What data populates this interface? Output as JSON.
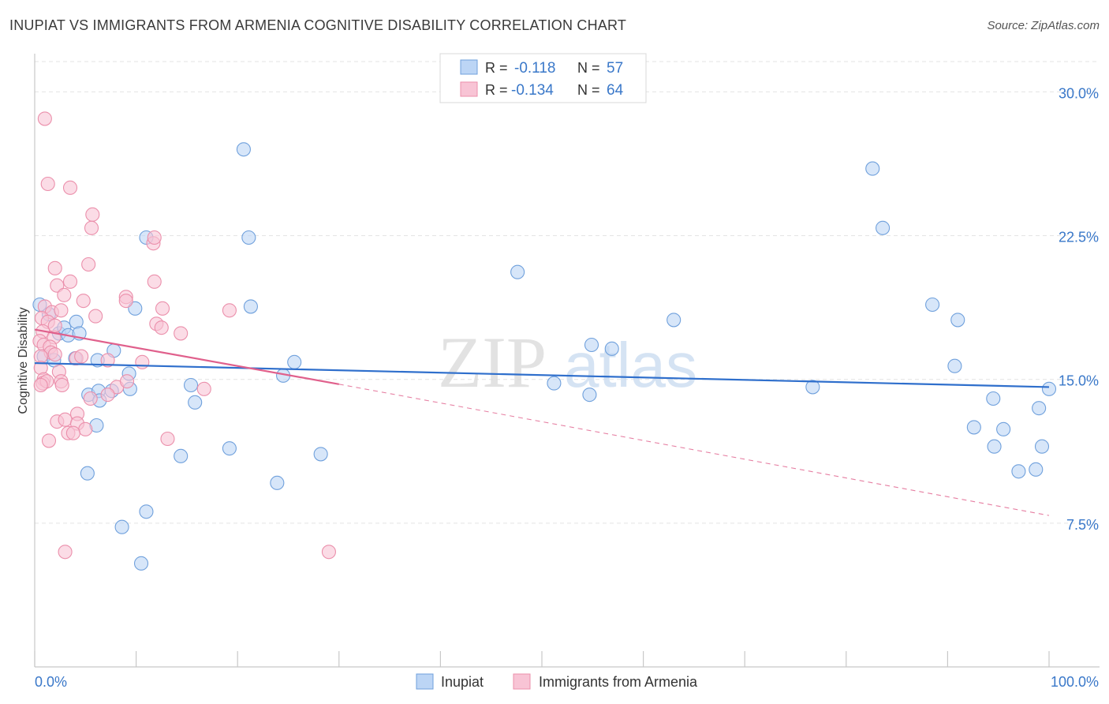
{
  "header": {
    "title": "INUPIAT VS IMMIGRANTS FROM ARMENIA COGNITIVE DISABILITY CORRELATION CHART",
    "source": "Source: ZipAtlas.com"
  },
  "watermark": {
    "part1": "ZIP",
    "part2": "atlas"
  },
  "colors": {
    "blue_fill": "#bcd5f5",
    "blue_stroke": "#6fa0dc",
    "blue_line": "#2f6fcc",
    "pink_fill": "#f8c4d5",
    "pink_stroke": "#eb8fab",
    "pink_line": "#e0608c",
    "tick_text": "#3a78c9",
    "grid": "#e3e3e3"
  },
  "chart_data": {
    "type": "scatter",
    "ylabel": "Cognitive Disability",
    "xlim": [
      0,
      100
    ],
    "ylim": [
      0,
      31.5
    ],
    "x_tick_labels": [
      {
        "value": 0,
        "label": "0.0%"
      },
      {
        "value": 100,
        "label": "100.0%"
      }
    ],
    "y_ticks": [
      {
        "value": 7.5,
        "label": "7.5%"
      },
      {
        "value": 15.0,
        "label": "15.0%"
      },
      {
        "value": 22.5,
        "label": "22.5%"
      },
      {
        "value": 30.0,
        "label": "30.0%"
      }
    ],
    "legend": {
      "position": "top-center",
      "rows": [
        {
          "r_label": "R =",
          "r_value": "-0.118",
          "n_label": "N =",
          "n_value": "57"
        },
        {
          "r_label": "R =",
          "r_value": "-0.134",
          "n_label": "N =",
          "n_value": "64"
        }
      ]
    },
    "bottom_legend": [
      "Inupiat",
      "Immigrants from Armenia"
    ],
    "series": [
      {
        "name": "Inupiat",
        "color": "blue",
        "trend": {
          "x0": 0,
          "y0": 15.85,
          "x1": 100,
          "y1": 14.6
        },
        "points": [
          [
            0.5,
            18.9
          ],
          [
            0.9,
            16.2
          ],
          [
            1.4,
            18.4
          ],
          [
            1.9,
            16.0
          ],
          [
            2.4,
            17.4
          ],
          [
            2.9,
            17.7
          ],
          [
            3.3,
            17.3
          ],
          [
            4.0,
            16.1
          ],
          [
            4.1,
            18.0
          ],
          [
            4.4,
            17.4
          ],
          [
            6.2,
            16.0
          ],
          [
            5.3,
            14.2
          ],
          [
            5.2,
            10.1
          ],
          [
            6.1,
            12.6
          ],
          [
            6.3,
            14.4
          ],
          [
            6.4,
            13.9
          ],
          [
            7.6,
            14.4
          ],
          [
            7.8,
            16.5
          ],
          [
            8.6,
            7.3
          ],
          [
            9.4,
            14.5
          ],
          [
            10.5,
            5.4
          ],
          [
            11.0,
            8.1
          ],
          [
            9.3,
            15.3
          ],
          [
            15.4,
            14.7
          ],
          [
            19.2,
            11.4
          ],
          [
            20.6,
            27.0
          ],
          [
            21.1,
            22.4
          ],
          [
            21.3,
            18.8
          ],
          [
            24.5,
            15.2
          ],
          [
            23.9,
            9.6
          ],
          [
            15.8,
            13.8
          ],
          [
            11.0,
            22.4
          ],
          [
            14.4,
            11.0
          ],
          [
            9.9,
            18.7
          ],
          [
            25.6,
            15.9
          ],
          [
            28.2,
            11.1
          ],
          [
            47.6,
            20.6
          ],
          [
            51.2,
            14.8
          ],
          [
            54.7,
            14.2
          ],
          [
            54.9,
            16.8
          ],
          [
            56.9,
            16.6
          ],
          [
            63.0,
            18.1
          ],
          [
            76.7,
            14.6
          ],
          [
            83.6,
            22.9
          ],
          [
            82.6,
            26.0
          ],
          [
            88.5,
            18.9
          ],
          [
            90.7,
            15.7
          ],
          [
            91.0,
            18.1
          ],
          [
            92.6,
            12.5
          ],
          [
            94.5,
            14.0
          ],
          [
            95.5,
            12.4
          ],
          [
            94.6,
            11.5
          ],
          [
            97.0,
            10.2
          ],
          [
            98.7,
            10.3
          ],
          [
            100.0,
            14.5
          ],
          [
            99.0,
            13.5
          ],
          [
            99.3,
            11.5
          ]
        ]
      },
      {
        "name": "Immigrants from Armenia",
        "color": "pink",
        "trend": {
          "x0": 0,
          "y0": 17.6,
          "x1": 30,
          "y1": 14.75,
          "dash_x1": 100,
          "dash_y1": 7.9
        },
        "points": [
          [
            1.0,
            28.6
          ],
          [
            1.3,
            25.2
          ],
          [
            3.5,
            25.0
          ],
          [
            5.7,
            23.6
          ],
          [
            5.6,
            22.9
          ],
          [
            11.7,
            22.1
          ],
          [
            11.8,
            22.4
          ],
          [
            5.3,
            21.0
          ],
          [
            2.0,
            20.8
          ],
          [
            3.5,
            20.1
          ],
          [
            11.8,
            20.1
          ],
          [
            2.2,
            19.9
          ],
          [
            2.9,
            19.4
          ],
          [
            4.8,
            19.1
          ],
          [
            9.0,
            19.3
          ],
          [
            9.0,
            19.1
          ],
          [
            1.0,
            18.8
          ],
          [
            1.7,
            18.5
          ],
          [
            2.6,
            18.6
          ],
          [
            6.0,
            18.3
          ],
          [
            12.6,
            18.7
          ],
          [
            19.2,
            18.6
          ],
          [
            0.7,
            18.2
          ],
          [
            1.3,
            18.0
          ],
          [
            0.8,
            17.5
          ],
          [
            1.9,
            17.2
          ],
          [
            12.0,
            17.9
          ],
          [
            12.5,
            17.7
          ],
          [
            14.4,
            17.4
          ],
          [
            0.5,
            17.0
          ],
          [
            0.9,
            16.8
          ],
          [
            1.5,
            16.7
          ],
          [
            1.6,
            16.4
          ],
          [
            2.0,
            16.3
          ],
          [
            4.1,
            16.1
          ],
          [
            4.6,
            16.2
          ],
          [
            7.2,
            16.0
          ],
          [
            0.6,
            16.2
          ],
          [
            0.6,
            15.6
          ],
          [
            0.9,
            15.0
          ],
          [
            2.4,
            15.4
          ],
          [
            2.6,
            14.9
          ],
          [
            0.8,
            14.8
          ],
          [
            1.2,
            14.9
          ],
          [
            0.6,
            14.7
          ],
          [
            2.7,
            14.7
          ],
          [
            4.2,
            13.2
          ],
          [
            2.2,
            12.8
          ],
          [
            3.0,
            12.9
          ],
          [
            4.2,
            12.7
          ],
          [
            3.3,
            12.2
          ],
          [
            5.0,
            12.4
          ],
          [
            3.8,
            12.2
          ],
          [
            1.4,
            11.8
          ],
          [
            13.1,
            11.9
          ],
          [
            3.0,
            6.0
          ],
          [
            29.0,
            6.0
          ],
          [
            5.5,
            14.0
          ],
          [
            8.1,
            14.6
          ],
          [
            9.1,
            14.9
          ],
          [
            7.2,
            14.2
          ],
          [
            16.7,
            14.5
          ],
          [
            2.0,
            17.8
          ],
          [
            10.6,
            15.9
          ]
        ]
      }
    ]
  }
}
